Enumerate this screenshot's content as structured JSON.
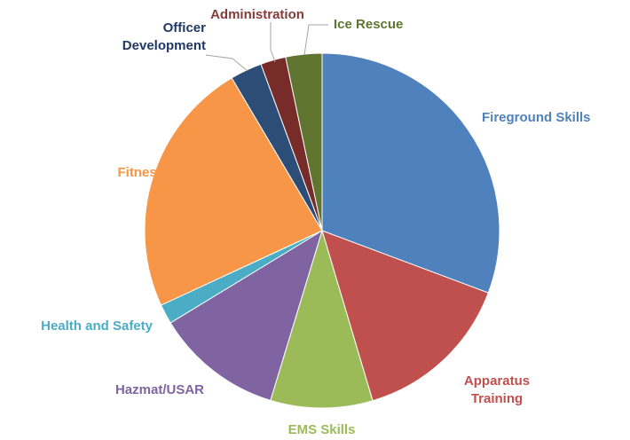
{
  "chart_data": {
    "type": "pie",
    "categories": [
      "Fireground Skills",
      "Apparatus Training",
      "EMS Skills",
      "Hazmat/USAR",
      "Health and Safety",
      "Fitness",
      "Officer Development",
      "Administration",
      "Ice Rescue"
    ],
    "values": [
      30.7,
      14.7,
      9.3,
      11.6,
      1.8,
      23.4,
      2.9,
      2.3,
      3.3
    ],
    "colors": [
      "#4f81bd",
      "#c0504d",
      "#9bbb59",
      "#8064a2",
      "#4bacc6",
      "#f79646",
      "#2c4d75",
      "#772c2a",
      "#5f7530"
    ],
    "label_colors": [
      "#4f81bd",
      "#c0504d",
      "#9bbb59",
      "#8064a2",
      "#4bacc6",
      "#f79646",
      "#1f3864",
      "#843c3a",
      "#5f7530"
    ]
  }
}
